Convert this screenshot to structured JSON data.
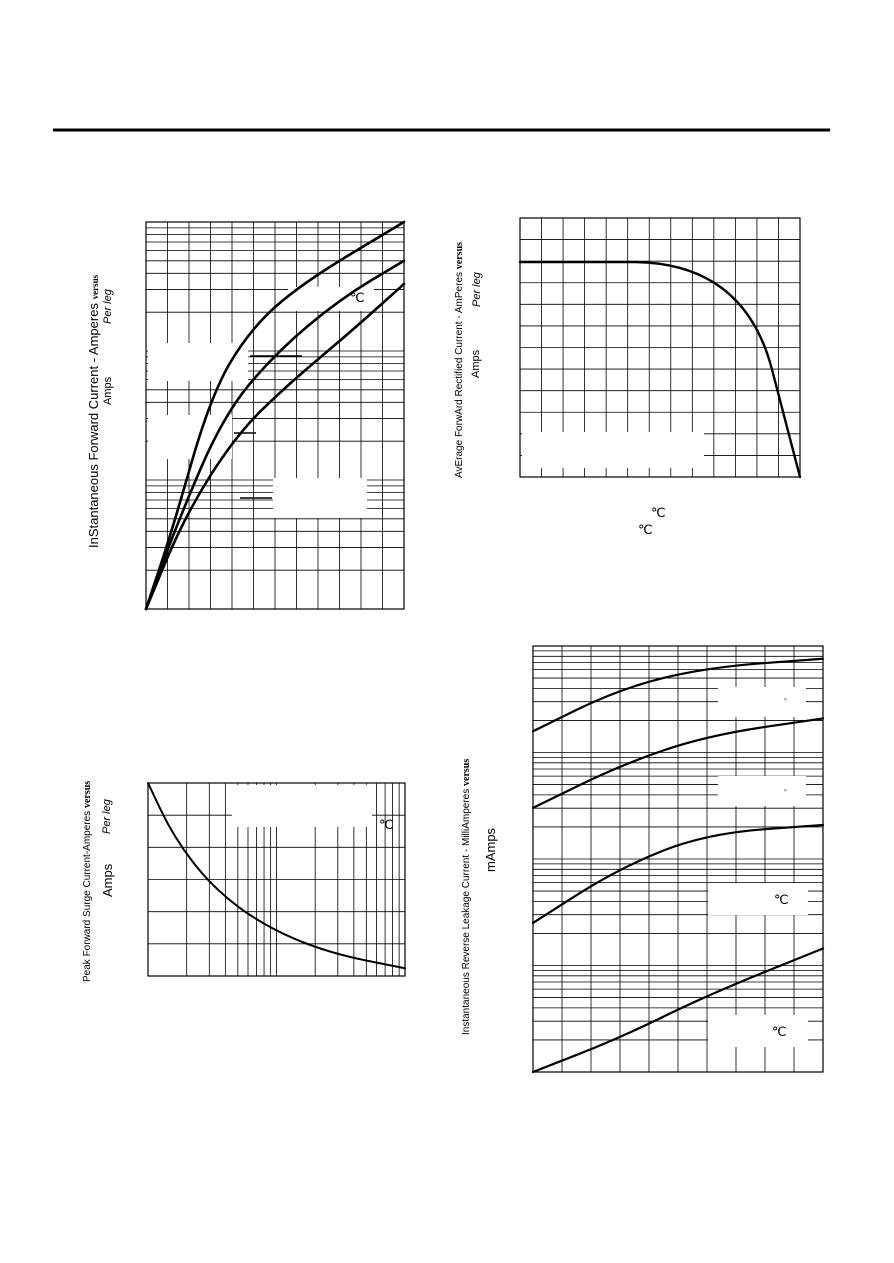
{
  "header_rule": true,
  "chart_data": [
    {
      "type": "line",
      "id": "fig-forward-current",
      "ylabel": "InStantaneous Forward Current - Amperes",
      "ylabel_suffix": "versus",
      "ylabel_sub1": "Amps",
      "ylabel_sub2": "Per leg",
      "yscale": "log",
      "annotation_units": [
        "℃"
      ],
      "series": [
        {
          "values": [
            [
              0.0,
              0.0
            ],
            [
              0.1,
              0.2
            ],
            [
              0.25,
              0.55
            ],
            [
              0.4,
              0.72
            ],
            [
              0.6,
              0.84
            ],
            [
              1.0,
              1.0
            ]
          ]
        },
        {
          "values": [
            [
              0.0,
              0.0
            ],
            [
              0.12,
              0.22
            ],
            [
              0.3,
              0.5
            ],
            [
              0.5,
              0.66
            ],
            [
              0.75,
              0.8
            ],
            [
              1.0,
              0.9
            ]
          ]
        },
        {
          "values": [
            [
              0.0,
              0.0
            ],
            [
              0.15,
              0.24
            ],
            [
              0.35,
              0.45
            ],
            [
              0.55,
              0.58
            ],
            [
              0.8,
              0.72
            ],
            [
              1.0,
              0.84
            ]
          ]
        }
      ]
    },
    {
      "type": "line",
      "id": "fig-derating",
      "ylabel": "AvErage ForwArd Rectified Current - AmPeres",
      "ylabel_suffix": "versus",
      "ylabel_sub1": "Amps",
      "ylabel_sub2": "Per leg",
      "xlabel_units": [
        "℃",
        "℃"
      ],
      "series": [
        {
          "values": [
            [
              0.0,
              0.83
            ],
            [
              0.8,
              0.83
            ],
            [
              1.0,
              0.0
            ]
          ]
        }
      ]
    },
    {
      "type": "line",
      "id": "fig-surge",
      "ylabel": "Peak Forward Surge Current-Amperes",
      "ylabel_suffix": "versus",
      "ylabel_sub1": "Amps",
      "ylabel_sub2": "Per leg",
      "xscale": "log",
      "annotation_units": [
        "℃"
      ],
      "series": [
        {
          "values": [
            [
              0.0,
              1.0
            ],
            [
              0.1,
              0.72
            ],
            [
              0.25,
              0.46
            ],
            [
              0.45,
              0.26
            ],
            [
              0.7,
              0.12
            ],
            [
              1.0,
              0.04
            ]
          ]
        }
      ]
    },
    {
      "type": "line",
      "id": "fig-leakage",
      "ylabel": "Instantaneous Reverse Leakage Current - MilliAmperes",
      "ylabel_suffix": "versus",
      "ylabel_sub1": "mAmps",
      "yscale": "log",
      "annotation_units": [
        "°",
        "°",
        "℃",
        "℃"
      ],
      "series": [
        {
          "values": [
            [
              0.0,
              0.8
            ],
            [
              0.3,
              0.9
            ],
            [
              0.6,
              0.95
            ],
            [
              1.0,
              0.97
            ]
          ]
        },
        {
          "values": [
            [
              0.0,
              0.62
            ],
            [
              0.3,
              0.72
            ],
            [
              0.6,
              0.79
            ],
            [
              1.0,
              0.83
            ]
          ]
        },
        {
          "values": [
            [
              0.0,
              0.35
            ],
            [
              0.3,
              0.48
            ],
            [
              0.6,
              0.56
            ],
            [
              1.0,
              0.58
            ]
          ]
        },
        {
          "values": [
            [
              0.0,
              0.0
            ],
            [
              0.3,
              0.08
            ],
            [
              0.6,
              0.18
            ],
            [
              1.0,
              0.29
            ]
          ]
        }
      ]
    }
  ]
}
